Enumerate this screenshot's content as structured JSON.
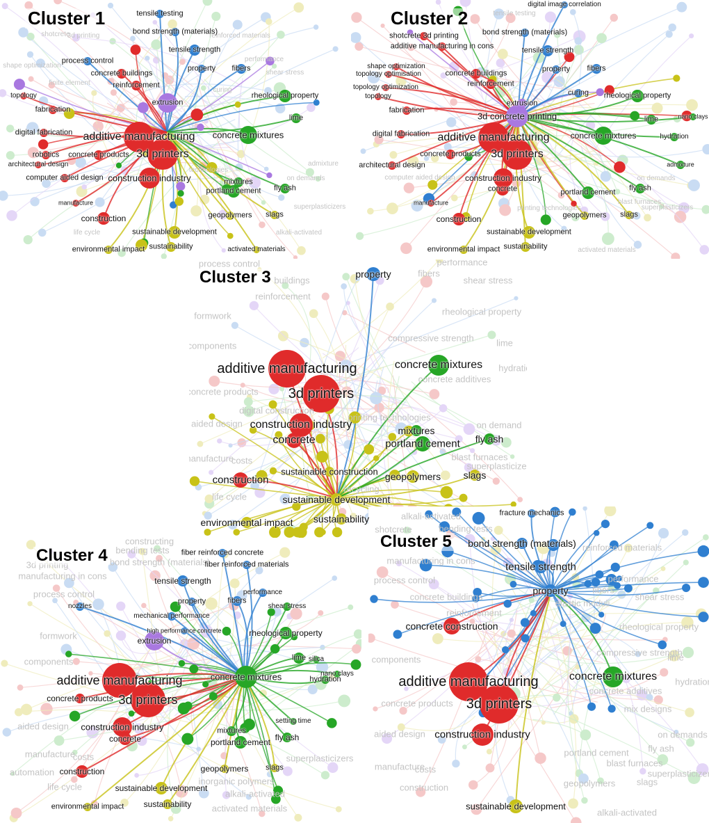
{
  "colors": {
    "red": "#e02b2b",
    "green": "#26a626",
    "blue": "#2f7fd0",
    "yellow": "#c8c218",
    "purple": "#a978e0"
  },
  "panels": [
    {
      "id": "cluster-1",
      "title": "Cluster 1",
      "hub": "additive manufacturing",
      "focus": [
        "red",
        "green",
        "blue",
        "yellow",
        "purple"
      ],
      "nodes": [
        {
          "label": "additive manufacturing",
          "color": "red",
          "size": "xl"
        },
        {
          "label": "3d printers",
          "color": "red",
          "size": "xl"
        },
        {
          "label": "construction industry",
          "color": "red",
          "size": "l"
        },
        {
          "label": "extrusion",
          "color": "purple",
          "size": "l"
        },
        {
          "label": "concrete buildings",
          "color": "red",
          "size": "s"
        },
        {
          "label": "reinforcement",
          "color": "red",
          "size": "s"
        },
        {
          "label": "process control",
          "color": "blue",
          "size": "s"
        },
        {
          "label": "tensile testing",
          "color": "blue",
          "size": "s"
        },
        {
          "label": "bond strength (materials)",
          "color": "blue",
          "size": "s"
        },
        {
          "label": "tensile strength",
          "color": "blue",
          "size": "m"
        },
        {
          "label": "fibers",
          "color": "blue",
          "size": "s"
        },
        {
          "label": "property",
          "color": "blue",
          "size": "s"
        },
        {
          "label": "rheological property",
          "color": "green",
          "size": "m"
        },
        {
          "label": "lime",
          "color": "green",
          "size": "s"
        },
        {
          "label": "concrete mixtures",
          "color": "green",
          "size": "l"
        },
        {
          "label": "mixtures",
          "color": "green",
          "size": "s"
        },
        {
          "label": "portland cement",
          "color": "green",
          "size": "m"
        },
        {
          "label": "fly ash",
          "color": "green",
          "size": "s"
        },
        {
          "label": "geopolymers",
          "color": "yellow",
          "size": "s"
        },
        {
          "label": "slags",
          "color": "yellow",
          "size": "s"
        },
        {
          "label": "sustainable development",
          "color": "yellow",
          "size": "m"
        },
        {
          "label": "sustainability",
          "color": "yellow",
          "size": "s"
        },
        {
          "label": "activated materials",
          "color": "yellow",
          "size": "s"
        },
        {
          "label": "environmental impact",
          "color": "yellow",
          "size": "s"
        },
        {
          "label": "construction",
          "color": "red",
          "size": "m"
        },
        {
          "label": "manufacture",
          "color": "red",
          "size": "s"
        },
        {
          "label": "computer aided design",
          "color": "red",
          "size": "s"
        },
        {
          "label": "architectural design",
          "color": "red",
          "size": "s"
        },
        {
          "label": "robotics",
          "color": "red",
          "size": "s"
        },
        {
          "label": "digital fabrication",
          "color": "red",
          "size": "s"
        },
        {
          "label": "fabrication",
          "color": "red",
          "size": "s"
        },
        {
          "label": "topology",
          "color": "red",
          "size": "s"
        },
        {
          "label": "concrete products",
          "color": "red",
          "size": "s"
        }
      ],
      "faded_labels": [
        "shotcrete",
        "3d printing",
        "reinforced materials",
        "performance",
        "shear stress",
        "shape optimization",
        "finite element",
        "admixture",
        "on demands",
        "superplasticizers",
        "alkali-activated",
        "life cycle",
        "technologies",
        "curing"
      ]
    },
    {
      "id": "cluster-2",
      "title": "Cluster 2",
      "hub": "3d concrete printing",
      "focus": [
        "red",
        "purple",
        "green",
        "blue",
        "yellow"
      ],
      "nodes": [
        {
          "label": "additive manufacturing",
          "color": "red",
          "size": "xl"
        },
        {
          "label": "3d printers",
          "color": "red",
          "size": "xl"
        },
        {
          "label": "3d concrete printing",
          "color": "purple",
          "size": "l"
        },
        {
          "label": "construction industry",
          "color": "red",
          "size": "l"
        },
        {
          "label": "concrete",
          "color": "red",
          "size": "m"
        },
        {
          "label": "concrete products",
          "color": "red",
          "size": "s"
        },
        {
          "label": "extrusion",
          "color": "purple",
          "size": "s"
        },
        {
          "label": "reinforcement",
          "color": "red",
          "size": "s"
        },
        {
          "label": "concrete buildings",
          "color": "red",
          "size": "s"
        },
        {
          "label": "digital image correlation",
          "color": "blue",
          "size": "s"
        },
        {
          "label": "bond strength (materials)",
          "color": "blue",
          "size": "s"
        },
        {
          "label": "shotcrete 3d printing",
          "color": "red",
          "size": "s"
        },
        {
          "label": "additive manufacturing in cons",
          "color": "red",
          "size": "s"
        },
        {
          "label": "tensile strength",
          "color": "blue",
          "size": "m"
        },
        {
          "label": "property",
          "color": "blue",
          "size": "s"
        },
        {
          "label": "fibers",
          "color": "blue",
          "size": "s"
        },
        {
          "label": "curing",
          "color": "blue",
          "size": "s"
        },
        {
          "label": "rheological property",
          "color": "green",
          "size": "m"
        },
        {
          "label": "lime",
          "color": "green",
          "size": "s"
        },
        {
          "label": "nano clays",
          "color": "green",
          "size": "s"
        },
        {
          "label": "concrete mixtures",
          "color": "green",
          "size": "l"
        },
        {
          "label": "hydration",
          "color": "green",
          "size": "s"
        },
        {
          "label": "admixture",
          "color": "green",
          "size": "s"
        },
        {
          "label": "portland cement",
          "color": "green",
          "size": "m"
        },
        {
          "label": "fly ash",
          "color": "green",
          "size": "s"
        },
        {
          "label": "geopolymers",
          "color": "yellow",
          "size": "s"
        },
        {
          "label": "slags",
          "color": "yellow",
          "size": "s"
        },
        {
          "label": "sustainable development",
          "color": "yellow",
          "size": "m"
        },
        {
          "label": "sustainability",
          "color": "yellow",
          "size": "s"
        },
        {
          "label": "environmental impact",
          "color": "yellow",
          "size": "s"
        },
        {
          "label": "construction",
          "color": "red",
          "size": "m"
        },
        {
          "label": "manufacture",
          "color": "red",
          "size": "s"
        },
        {
          "label": "architectural design",
          "color": "red",
          "size": "s"
        },
        {
          "label": "digital fabrication",
          "color": "red",
          "size": "s"
        },
        {
          "label": "fabrication",
          "color": "red",
          "size": "s"
        },
        {
          "label": "topology",
          "color": "red",
          "size": "s"
        },
        {
          "label": "topology optimisation",
          "color": "red",
          "size": "s"
        },
        {
          "label": "shape optimization",
          "color": "red",
          "size": "s"
        },
        {
          "label": "topology optimization",
          "color": "red",
          "size": "s"
        }
      ],
      "faded_labels": [
        "tensile testing",
        "computer aided design",
        "on demands",
        "activated materials",
        "printing technologies",
        "blast furnaces",
        "superplasticizers"
      ]
    },
    {
      "id": "cluster-3",
      "title": "Cluster 3",
      "hub": "sustainable development",
      "focus": [
        "yellow"
      ],
      "nodes": [
        {
          "label": "sustainable development",
          "color": "yellow",
          "size": "m"
        },
        {
          "label": "sustainability",
          "color": "yellow",
          "size": "s"
        },
        {
          "label": "environmental impact",
          "color": "yellow",
          "size": "s"
        },
        {
          "label": "sustainable construction",
          "color": "yellow",
          "size": "s"
        },
        {
          "label": "geopolymers",
          "color": "yellow",
          "size": "s"
        },
        {
          "label": "slags",
          "color": "yellow",
          "size": "s"
        },
        {
          "label": "construction",
          "color": "red",
          "size": "m"
        },
        {
          "label": "additive manufacturing",
          "color": "red",
          "size": "xl"
        },
        {
          "label": "3d printers",
          "color": "red",
          "size": "xl"
        },
        {
          "label": "construction industry",
          "color": "red",
          "size": "l"
        },
        {
          "label": "concrete",
          "color": "red",
          "size": "m"
        },
        {
          "label": "property",
          "color": "blue",
          "size": "s"
        },
        {
          "label": "concrete mixtures",
          "color": "green",
          "size": "l"
        },
        {
          "label": "portland cement",
          "color": "green",
          "size": "m"
        },
        {
          "label": "fly ash",
          "color": "green",
          "size": "s"
        },
        {
          "label": "mixtures",
          "color": "green",
          "size": "s"
        }
      ],
      "faded_labels": [
        "process control",
        "buildings",
        "reinforcement",
        "formwork",
        "components",
        "concrete products",
        "aided design",
        "digital construction",
        "manufacture",
        "costs",
        "life cycle",
        "fibers",
        "performance",
        "shear stress",
        "rheological property",
        "compressive strength",
        "lime",
        "concrete additives",
        "hydration",
        "on demand",
        "blast furnaces",
        "superplasticizers",
        "recycling",
        "alkali-activated",
        "printing technologies"
      ]
    },
    {
      "id": "cluster-4",
      "title": "Cluster 4",
      "hub": "concrete mixtures",
      "focus": [
        "green"
      ],
      "nodes": [
        {
          "label": "concrete mixtures",
          "color": "green",
          "size": "l"
        },
        {
          "label": "rheological property",
          "color": "green",
          "size": "m"
        },
        {
          "label": "lime",
          "color": "green",
          "size": "s"
        },
        {
          "label": "silica",
          "color": "green",
          "size": "s"
        },
        {
          "label": "nano clays",
          "color": "green",
          "size": "s"
        },
        {
          "label": "hydration",
          "color": "green",
          "size": "s"
        },
        {
          "label": "setting time",
          "color": "green",
          "size": "s"
        },
        {
          "label": "fly ash",
          "color": "green",
          "size": "s"
        },
        {
          "label": "mixtures",
          "color": "green",
          "size": "s"
        },
        {
          "label": "portland cement",
          "color": "green",
          "size": "m"
        },
        {
          "label": "geopolymers",
          "color": "yellow",
          "size": "s"
        },
        {
          "label": "slags",
          "color": "yellow",
          "size": "s"
        },
        {
          "label": "sustainable development",
          "color": "yellow",
          "size": "m"
        },
        {
          "label": "sustainability",
          "color": "yellow",
          "size": "s"
        },
        {
          "label": "environmental impact",
          "color": "yellow",
          "size": "s"
        },
        {
          "label": "construction",
          "color": "red",
          "size": "m"
        },
        {
          "label": "construction industry",
          "color": "red",
          "size": "l"
        },
        {
          "label": "concrete",
          "color": "red",
          "size": "m"
        },
        {
          "label": "additive manufacturing",
          "color": "red",
          "size": "xl"
        },
        {
          "label": "3d printers",
          "color": "red",
          "size": "xl"
        },
        {
          "label": "concrete products",
          "color": "red",
          "size": "s"
        },
        {
          "label": "extrusion",
          "color": "purple",
          "size": "m"
        },
        {
          "label": "nozzles",
          "color": "blue",
          "size": "s"
        },
        {
          "label": "mechanical performance",
          "color": "blue",
          "size": "s"
        },
        {
          "label": "high performance concrete",
          "color": "blue",
          "size": "s"
        },
        {
          "label": "property",
          "color": "blue",
          "size": "s"
        },
        {
          "label": "fibers",
          "color": "blue",
          "size": "s"
        },
        {
          "label": "tensile strength",
          "color": "blue",
          "size": "m"
        },
        {
          "label": "fiber reinforced concrete",
          "color": "blue",
          "size": "s"
        },
        {
          "label": "fiber reinforced materials",
          "color": "blue",
          "size": "s"
        },
        {
          "label": "performance",
          "color": "blue",
          "size": "s"
        },
        {
          "label": "shear stress",
          "color": "green",
          "size": "s"
        }
      ],
      "faded_labels": [
        "process control",
        "3d printing",
        "manufacturing in cons",
        "formwork",
        "components",
        "aided design",
        "manufacture",
        "automation",
        "costs",
        "life cycle",
        "inorganic polymers",
        "alkali-activated",
        "activated materials",
        "superplasticizers",
        "bending tests",
        "bond strength (materials)",
        "constructing"
      ]
    },
    {
      "id": "cluster-5",
      "title": "Cluster 5",
      "hub": "property",
      "focus": [
        "blue"
      ],
      "nodes": [
        {
          "label": "fracture mechanics",
          "color": "blue",
          "size": "s"
        },
        {
          "label": "bond strength (materials)",
          "color": "blue",
          "size": "s"
        },
        {
          "label": "tensile strength",
          "color": "blue",
          "size": "m"
        },
        {
          "label": "property",
          "color": "blue",
          "size": "s"
        },
        {
          "label": "concrete construction",
          "color": "red",
          "size": "m"
        },
        {
          "label": "additive manufacturing",
          "color": "red",
          "size": "xl"
        },
        {
          "label": "3d printers",
          "color": "red",
          "size": "xl"
        },
        {
          "label": "construction industry",
          "color": "red",
          "size": "l"
        },
        {
          "label": "concrete mixtures",
          "color": "green",
          "size": "l"
        },
        {
          "label": "sustainable development",
          "color": "yellow",
          "size": "m"
        }
      ],
      "faded_labels": [
        "shotcrete",
        "bending tests",
        "reinforced materials",
        "manufacturing in cons",
        "process control",
        "performance",
        "concrete buildings",
        "fibers",
        "shear stress",
        "reinforcement",
        "elastic moduli",
        "rheological property",
        "lime",
        "hydration",
        "concrete additives",
        "mix designs",
        "on demands",
        "components",
        "concrete products",
        "aided design",
        "portland cement",
        "fly ash",
        "blast furnaces",
        "superplasticizers",
        "manufacture",
        "costs",
        "geopolymers",
        "slags",
        "construction",
        "alkali-activated",
        "compressive strength"
      ]
    }
  ]
}
